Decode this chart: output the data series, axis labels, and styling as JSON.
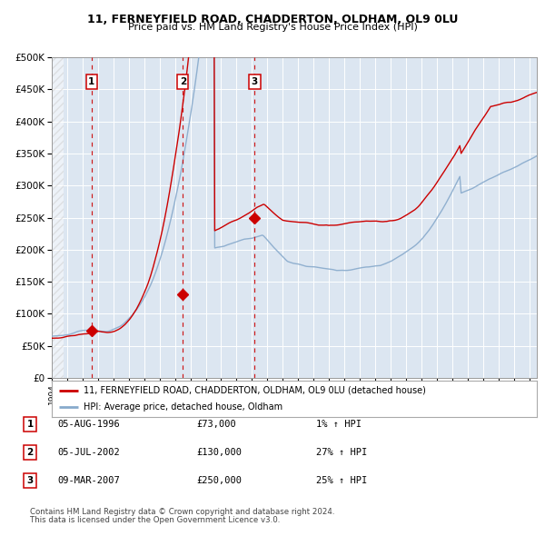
{
  "title1": "11, FERNEYFIELD ROAD, CHADDERTON, OLDHAM, OL9 0LU",
  "title2": "Price paid vs. HM Land Registry's House Price Index (HPI)",
  "legend_property": "11, FERNEYFIELD ROAD, CHADDERTON, OLDHAM, OL9 0LU (detached house)",
  "legend_hpi": "HPI: Average price, detached house, Oldham",
  "footer1": "Contains HM Land Registry data © Crown copyright and database right 2024.",
  "footer2": "This data is licensed under the Open Government Licence v3.0.",
  "sales": [
    {
      "num": 1,
      "date": "05-AUG-1996",
      "price": 73000,
      "hpi_pct": "1%",
      "dir": "↑"
    },
    {
      "num": 2,
      "date": "05-JUL-2002",
      "price": 130000,
      "hpi_pct": "27%",
      "dir": "↑"
    },
    {
      "num": 3,
      "date": "09-MAR-2007",
      "price": 250000,
      "hpi_pct": "25%",
      "dir": "↑"
    }
  ],
  "sale_dates_decimal": [
    1996.59,
    2002.51,
    2007.18
  ],
  "sale_prices": [
    73000,
    130000,
    250000
  ],
  "property_color": "#cc0000",
  "hpi_color": "#88aacc",
  "vline_color": "#cc0000",
  "background_color": "#dce6f1",
  "grid_color": "#ffffff",
  "ylim": [
    0,
    500000
  ],
  "xlim_start": 1994.0,
  "xlim_end": 2025.5
}
